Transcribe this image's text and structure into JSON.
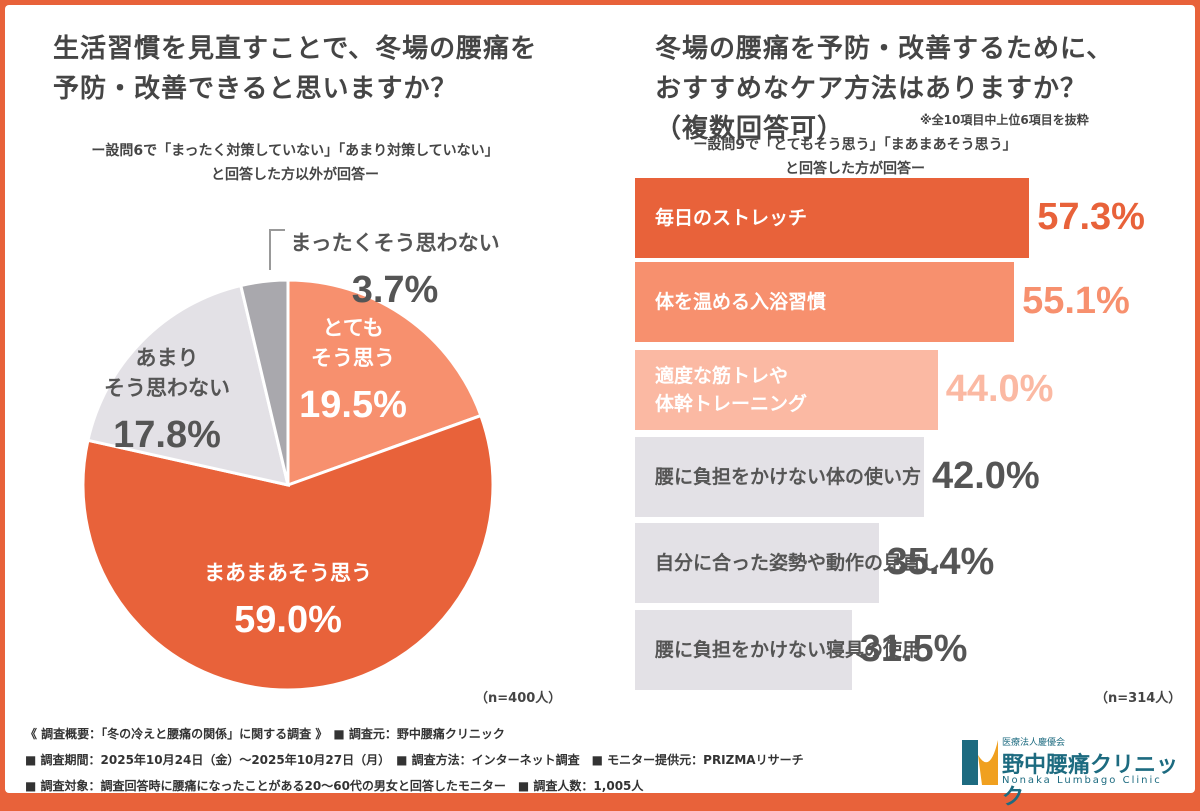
{
  "colors": {
    "dark_orange": "#e8623a",
    "orange": "#f7906e",
    "light_orange": "#fbb9a3",
    "gray": "#e3e1e6",
    "dark_gray": "#a9a8ad",
    "frame": "#e8623a"
  },
  "chart_data": [
    {
      "type": "pie",
      "title": "生活習慣を見直すことで、冬場の腰痛を\n予防・改善できると思いますか？",
      "subtitle": "ー設問6で「まったく対策していない」「あまり対策していない」\nと回答した方以外が回答ー",
      "n": "（n=400人）",
      "slices": [
        {
          "label": "とても\nそう思う",
          "value": 19.5,
          "display": "19.5%",
          "color": "#f7906e"
        },
        {
          "label": "まあまあそう思う",
          "value": 59.0,
          "display": "59.0%",
          "color": "#e8623a"
        },
        {
          "label": "あまり\nそう思わない",
          "value": 17.8,
          "display": "17.8%",
          "color": "#e3e1e6"
        },
        {
          "label": "まったくそう思わない",
          "value": 3.7,
          "display": "3.7%",
          "color": "#a9a8ad"
        }
      ]
    },
    {
      "type": "bar",
      "orientation": "horizontal",
      "title": "冬場の腰痛を予防・改善するために、\nおすすめなケア方法はありますか？\n（複数回答可）",
      "note": "※全10項目中上位6項目を抜粋",
      "subtitle": "ー設問9で「とてもそう思う」「まあまあそう思う」\nと回答した方が回答ー",
      "n": "（n=314人）",
      "categories": [
        "毎日のストレッチ",
        "体を温める入浴習慣",
        "適度な筋トレや\n体幹トレーニング",
        "腰に負担をかけない体の使い方",
        "自分に合った姿勢や動作の見直し",
        "腰に負担をかけない寝具の使用"
      ],
      "values": [
        57.3,
        55.1,
        44.0,
        42.0,
        35.4,
        31.5
      ],
      "display": [
        "57.3%",
        "55.1%",
        "44.0%",
        "42.0%",
        "35.4%",
        "31.5%"
      ],
      "colors": [
        "#e8623a",
        "#f7906e",
        "#fbb9a3",
        "#e3e1e6",
        "#e3e1e6",
        "#e3e1e6"
      ]
    }
  ],
  "footer": {
    "line1": "《 調査概要：「冬の冷えと腰痛の関係」に関する調査 》　■ 調査元：野中腰痛クリニック",
    "line2": "■ 調査期間：2025年10月24日（金）～2025年10月27日（月）　■ 調査方法：インターネット調査　■ モニター提供元：PRIZMAリサーチ",
    "line3": "■ 調査対象：調査回答時に腰痛になったことがある20～60代の男女と回答したモニター　■ 調査人数：1,005人"
  },
  "logo": {
    "corp": "医療法人慶優会",
    "name": "野中腰痛クリニック",
    "en": "Nonaka Lumbago Clinic"
  }
}
